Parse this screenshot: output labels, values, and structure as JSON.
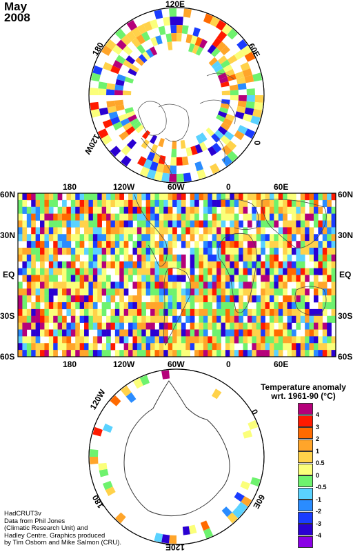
{
  "title": {
    "month": "May",
    "year": "2008"
  },
  "north_polar": {
    "longitude_labels": [
      "120E",
      "60E",
      "0",
      "120W",
      "180"
    ]
  },
  "equatorial_map": {
    "top_longitude_labels": [
      "180",
      "120W",
      "60W",
      "0",
      "60E"
    ],
    "bottom_longitude_labels": [
      "180",
      "120W",
      "60W",
      "0",
      "60E"
    ],
    "left_latitude_labels": [
      "60N",
      "30N",
      "EQ",
      "30S",
      "60S"
    ],
    "right_latitude_labels": [
      "60N",
      "30N",
      "EQ",
      "30S",
      "60S"
    ]
  },
  "south_polar": {
    "longitude_labels": [
      "120W",
      "0",
      "180",
      "60E",
      "120E"
    ]
  },
  "legend": {
    "title_line1": "Temperature anomaly",
    "title_line2": "wrt. 1961-90  (°C)",
    "entries": [
      {
        "label": "4",
        "color": "#b5007a"
      },
      {
        "label": "3",
        "color": "#ff1a00"
      },
      {
        "label": "2",
        "color": "#ff6a00"
      },
      {
        "label": "1",
        "color": "#ffa52a"
      },
      {
        "label": "0.5",
        "color": "#ffd24a"
      },
      {
        "label": "0",
        "color": "#fbff7a"
      },
      {
        "label": "-0.5",
        "color": "#6ef26e"
      },
      {
        "label": "-1",
        "color": "#5ad2ff"
      },
      {
        "label": "-2",
        "color": "#2a8cff"
      },
      {
        "label": "-3",
        "color": "#1a3cff"
      },
      {
        "label": "-4",
        "color": "#2a00d2"
      },
      {
        "label": "",
        "color": "#8a00e6"
      }
    ]
  },
  "credits": [
    "HadCRUT3v",
    "Data from Phil Jones",
    "(Climatic Research Unit) and",
    "Hadley Centre.  Graphics produced",
    "by Tim Osborn and Mike Salmon (CRU)."
  ]
}
